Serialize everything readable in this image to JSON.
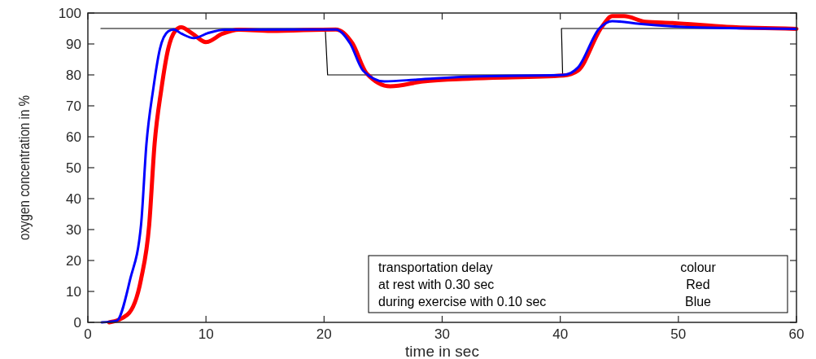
{
  "chart_data": {
    "type": "line",
    "xlabel": "time in sec",
    "ylabel": "oxygen concentration in %",
    "xlim": [
      0,
      60
    ],
    "xticks": [
      0,
      10,
      20,
      30,
      40,
      50,
      60
    ],
    "ylim": [
      0,
      100
    ],
    "yticks": [
      0,
      10,
      20,
      30,
      40,
      50,
      60,
      70,
      80,
      90,
      100
    ],
    "grid": false,
    "series": [
      {
        "color": "#000000",
        "x": [
          1.1,
          20.1,
          20.3,
          40.2,
          40.1,
          60
        ],
        "values": [
          95,
          95,
          80,
          80,
          95,
          95
        ]
      },
      {
        "color": "#ff0000",
        "x": [
          1.8,
          3.35,
          4.5,
          5.19,
          5.65,
          6.22,
          6.8,
          7.37,
          7.9,
          8.86,
          10.0,
          11.4,
          12.8,
          15.5,
          21.0,
          22.4,
          23.6,
          25.6,
          28.4,
          32.5,
          40.3,
          41.5,
          43.5,
          44.4,
          45.4,
          47.2,
          49.5,
          54.1,
          60
        ],
        "values": [
          0,
          2.5,
          13.9,
          31.4,
          57.7,
          75.3,
          88.4,
          94.1,
          95.4,
          93.3,
          90.6,
          93.3,
          94.6,
          94.2,
          94.7,
          90.2,
          80.5,
          76.3,
          77.9,
          78.8,
          79.8,
          81.4,
          95.4,
          99,
          99,
          97.2,
          96.8,
          95.5,
          94.9
        ]
      },
      {
        "color": "#0000ff",
        "x": [
          1.17,
          2.43,
          3.58,
          4.5,
          4.96,
          5.53,
          6.1,
          6.8,
          7.26,
          7.94,
          8.98,
          10.24,
          11.6,
          21.0,
          22.2,
          23.3,
          25.1,
          27.9,
          32.5,
          40.3,
          41.5,
          43.3,
          44.4,
          46.7,
          51.8,
          60
        ],
        "values": [
          0,
          0.5,
          13.9,
          31.4,
          57.7,
          75.3,
          88.4,
          94.1,
          94.7,
          93.3,
          91.9,
          93.6,
          94.6,
          94.7,
          90.2,
          81.4,
          77.9,
          78.5,
          79.5,
          80.0,
          82.4,
          95,
          97.4,
          96.5,
          95.3,
          94.9
        ]
      }
    ],
    "annotations": [
      "transportation delay",
      "colour",
      "at rest with 0.30 sec",
      "Red",
      "during exercise with 0.10 sec",
      "Blue"
    ]
  }
}
